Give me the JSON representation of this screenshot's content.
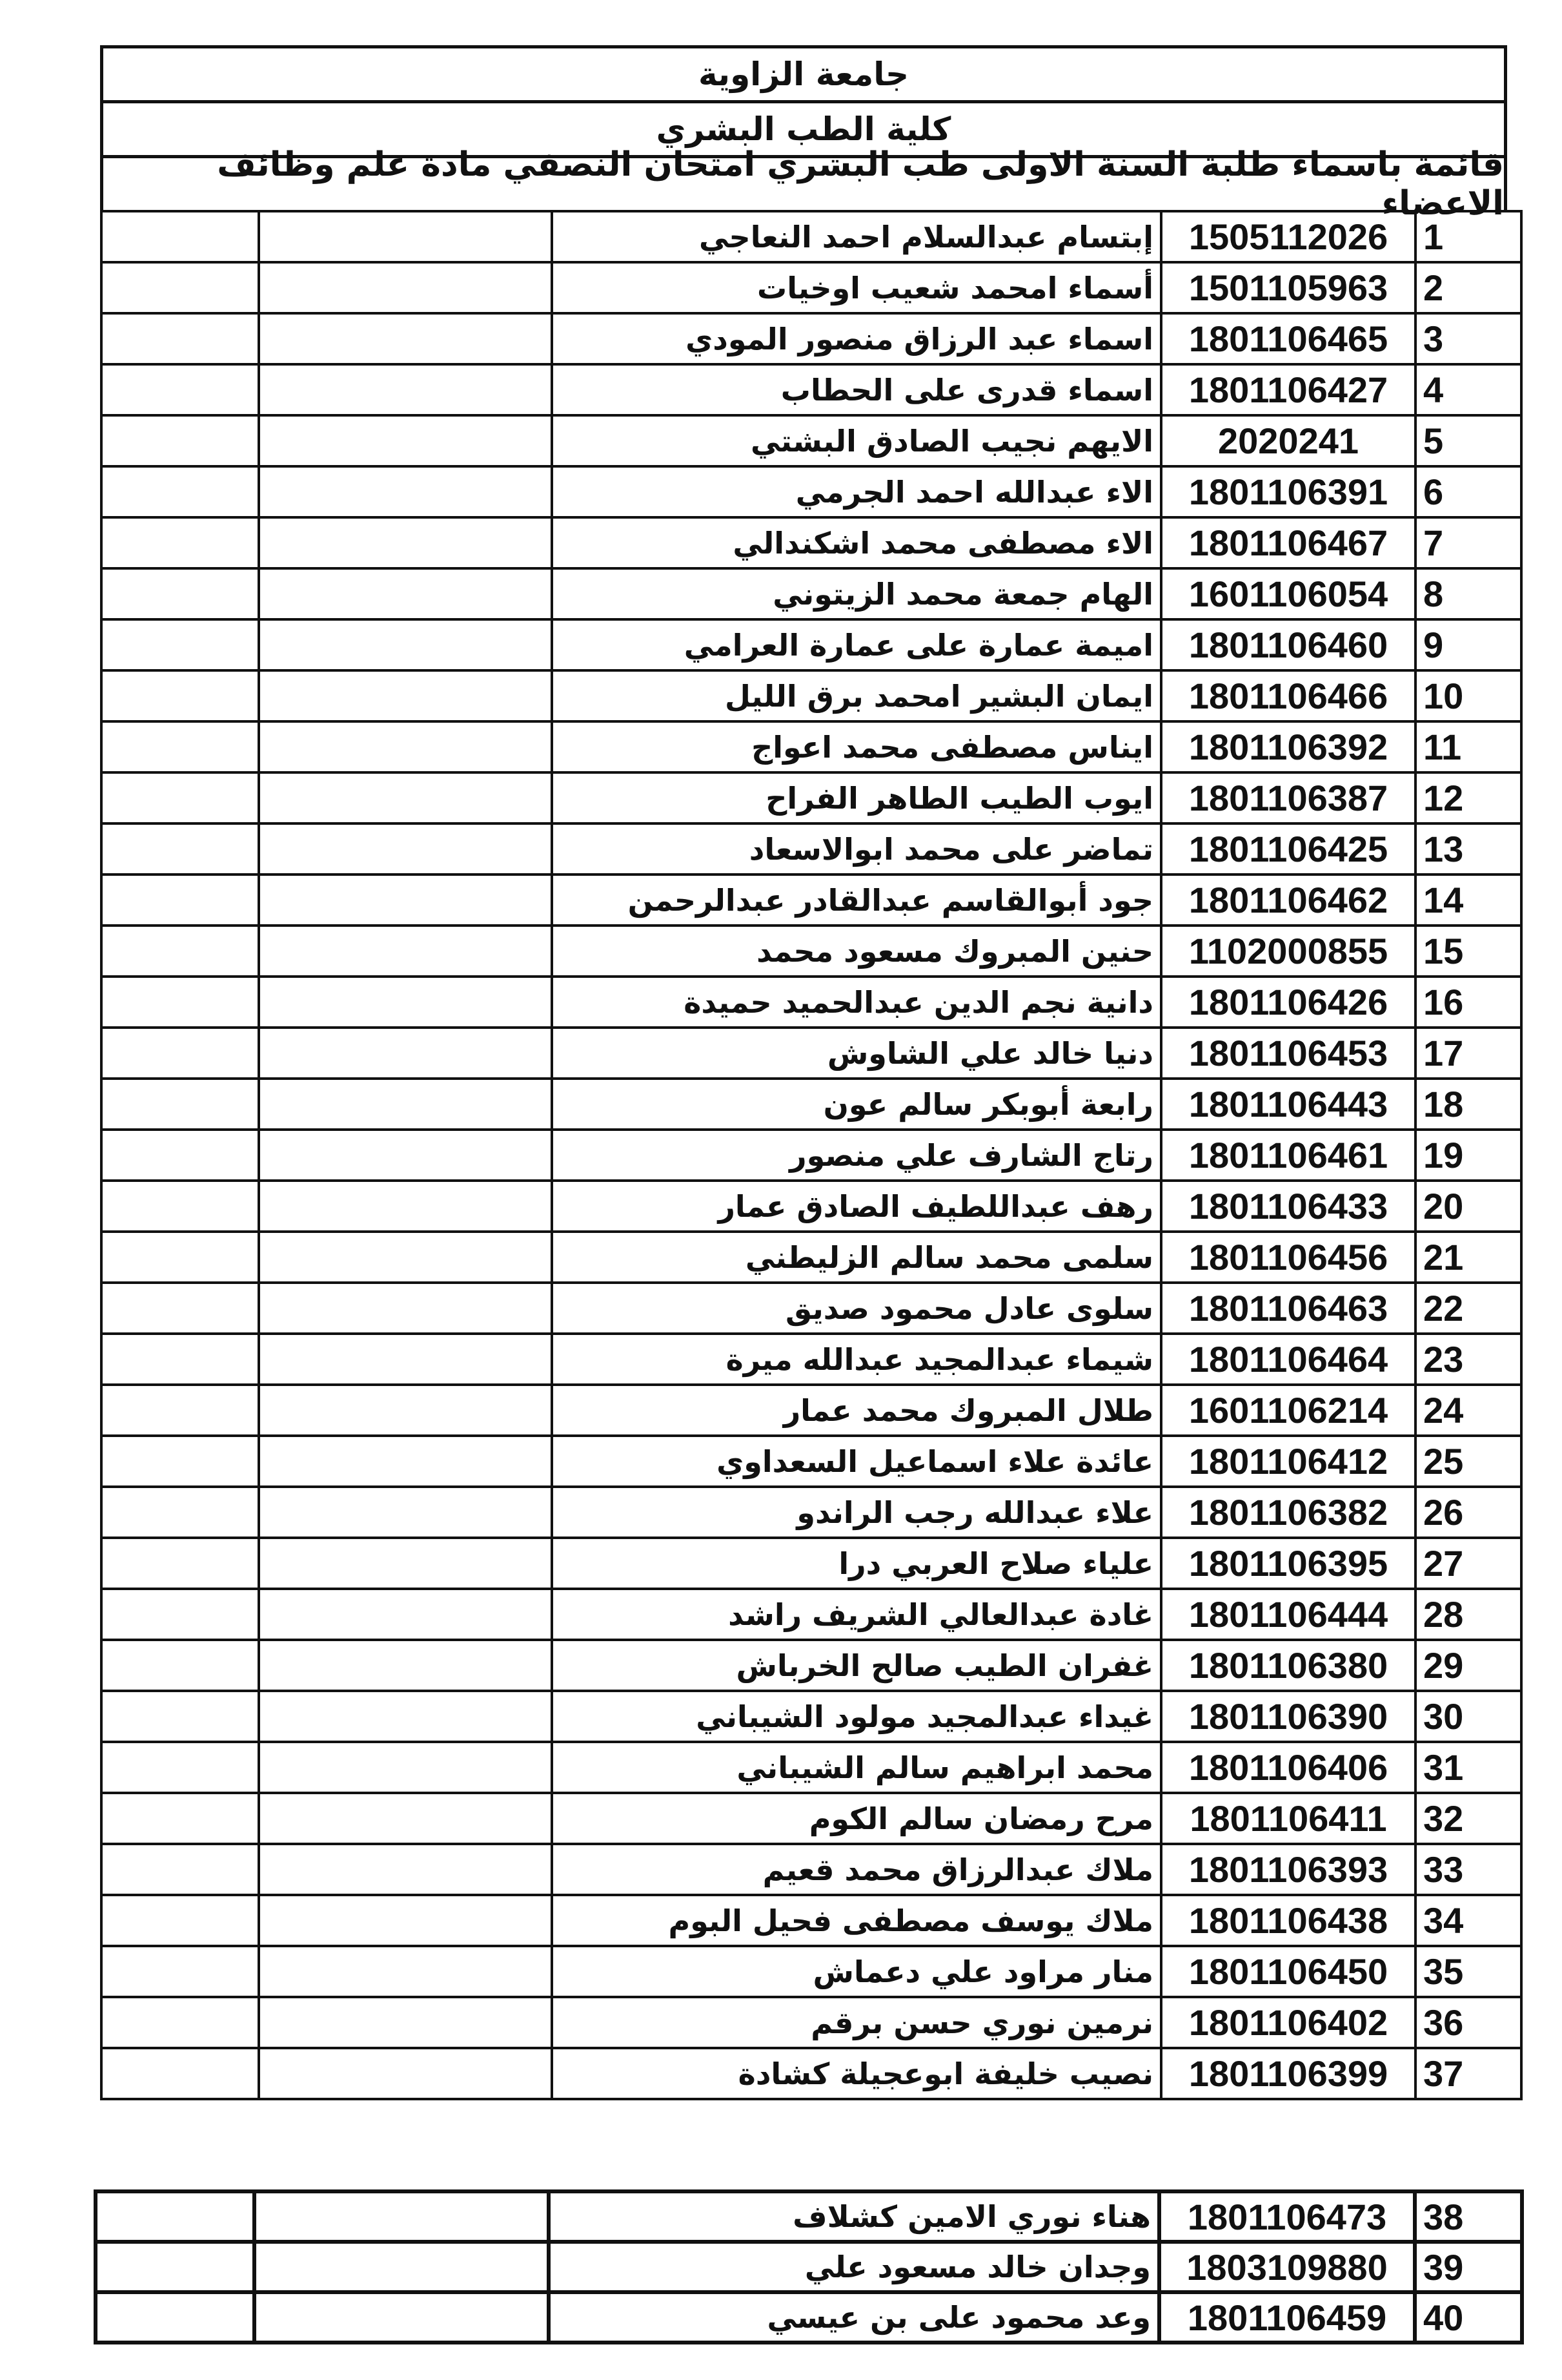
{
  "header": {
    "university": "جامعة الزاوية",
    "faculty": "كلية الطب البشري",
    "list_title": "قائمة باسماء طلبة السنة الاولى طب البشري امتحان النصفي مادة علم وظائف الاعضاء"
  },
  "students": [
    {
      "no": "1",
      "id": "1505112026",
      "name": "إبتسام عبدالسلام احمد  النعاجي"
    },
    {
      "no": "2",
      "id": "1501105963",
      "name": "أسماء امحمد شعيب  اوخيات"
    },
    {
      "no": "3",
      "id": "1801106465",
      "name": "اسماء عبد الرزاق منصور  المودي"
    },
    {
      "no": "4",
      "id": "1801106427",
      "name": "اسماء قدرى على  الحطاب"
    },
    {
      "no": "5",
      "id": "2020241",
      "name": "الايهم نجيب الصادق البشتي"
    },
    {
      "no": "6",
      "id": "1801106391",
      "name": "الاء عبدالله احمد  الجرمي"
    },
    {
      "no": "7",
      "id": "1801106467",
      "name": "الاء مصطفى محمد  اشكندالي"
    },
    {
      "no": "8",
      "id": "1601106054",
      "name": "الهام جمعة محمد  الزيتوني"
    },
    {
      "no": "9",
      "id": "1801106460",
      "name": "اميمة عمارة على عمارة  العرامي"
    },
    {
      "no": "10",
      "id": "1801106466",
      "name": "ايمان البشير امحمد  برق الليل"
    },
    {
      "no": "11",
      "id": "1801106392",
      "name": "ايناس مصطفى محمد  اعواج"
    },
    {
      "no": "12",
      "id": "1801106387",
      "name": "ايوب الطيب الطاهر  الفراح"
    },
    {
      "no": "13",
      "id": "1801106425",
      "name": "تماضر على محمد  ابوالاسعاد"
    },
    {
      "no": "14",
      "id": "1801106462",
      "name": "جود أبوالقاسم عبدالقادر  عبدالرحمن"
    },
    {
      "no": "15",
      "id": "1102000855",
      "name": "حنين المبروك مسعود محمد"
    },
    {
      "no": "16",
      "id": "1801106426",
      "name": "دانية نجم الدين عبدالحميد  حميدة"
    },
    {
      "no": "17",
      "id": "1801106453",
      "name": "دنيا خالد علي  الشاوش"
    },
    {
      "no": "18",
      "id": "1801106443",
      "name": "رابعة أبوبكر سالم  عون"
    },
    {
      "no": "19",
      "id": "1801106461",
      "name": "رتاج الشارف علي  منصور"
    },
    {
      "no": "20",
      "id": "1801106433",
      "name": "رهف عبداللطيف الصادق  عمار"
    },
    {
      "no": "21",
      "id": "1801106456",
      "name": "سلمى محمد سالم  الزليطني"
    },
    {
      "no": "22",
      "id": "1801106463",
      "name": "سلوى عادل محمود  صديق"
    },
    {
      "no": "23",
      "id": "1801106464",
      "name": "شيماء عبدالمجيد عبدالله  ميرة"
    },
    {
      "no": "24",
      "id": "1601106214",
      "name": "طلال المبروك محمد  عمار"
    },
    {
      "no": "25",
      "id": "1801106412",
      "name": "عائدة علاء اسماعيل  السعداوي"
    },
    {
      "no": "26",
      "id": "1801106382",
      "name": "علاء عبدالله رجب  الراندو"
    },
    {
      "no": "27",
      "id": "1801106395",
      "name": "علياء صلاح العربي  درا"
    },
    {
      "no": "28",
      "id": "1801106444",
      "name": "غادة عبدالعالي الشريف  راشد"
    },
    {
      "no": "29",
      "id": "1801106380",
      "name": "غفران الطيب صالح  الخرباش"
    },
    {
      "no": "30",
      "id": "1801106390",
      "name": "غيداء عبدالمجيد مولود  الشيباني"
    },
    {
      "no": "31",
      "id": "1801106406",
      "name": "محمد ابراهيم سالم  الشيباني"
    },
    {
      "no": "32",
      "id": "1801106411",
      "name": "مرح رمضان سالم  الكوم"
    },
    {
      "no": "33",
      "id": "1801106393",
      "name": "ملاك عبدالرزاق محمد  قعيم"
    },
    {
      "no": "34",
      "id": "1801106438",
      "name": "ملاك يوسف مصطفى  فحيل البوم"
    },
    {
      "no": "35",
      "id": "1801106450",
      "name": "منار مراود علي  دعماش"
    },
    {
      "no": "36",
      "id": "1801106402",
      "name": "نرمين نوري حسن  برقم"
    },
    {
      "no": "37",
      "id": "1801106399",
      "name": "نصيب خليفة ابوعجيلة  كشادة"
    }
  ],
  "students_continued": [
    {
      "no": "38",
      "id": "1801106473",
      "name": "هناء نوري الامين  كشلاف"
    },
    {
      "no": "39",
      "id": "1803109880",
      "name": "وجدان خالد مسعود  علي"
    },
    {
      "no": "40",
      "id": "1801106459",
      "name": "وعد محمود على  بن عيسي"
    }
  ]
}
